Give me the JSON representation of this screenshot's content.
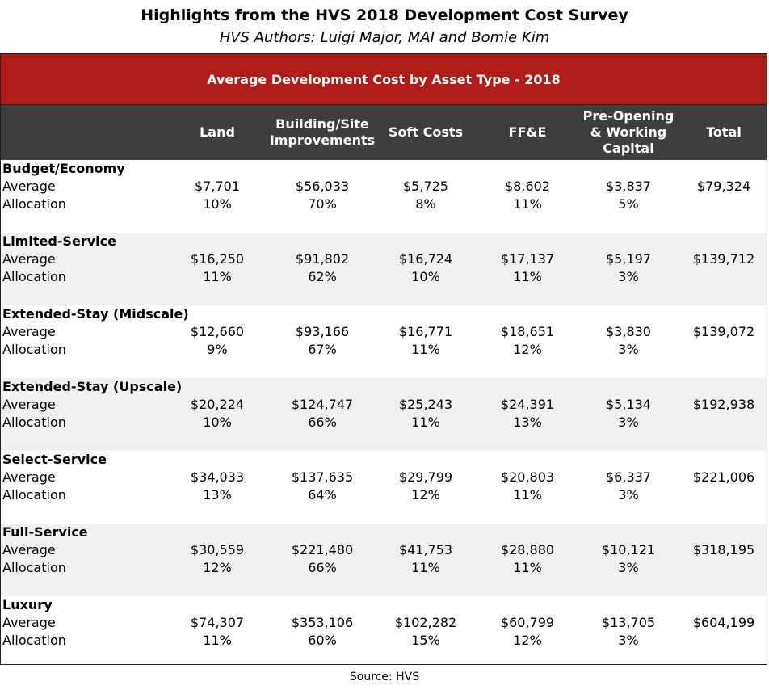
{
  "title": "Highlights from the  HVS 2018 Development Cost Survey",
  "subtitle": "HVS Authors: Luigi Major, MAI and Bomie Kim",
  "table_title": "Average Development Cost by Asset Type - 2018",
  "columns": [
    "Land",
    "Building/Site Improvements",
    "Soft Costs",
    "FF&E",
    "Pre-Opening & Working Capital",
    "Total"
  ],
  "row_labels": {
    "average": "Average",
    "allocation": "Allocation"
  },
  "groups": [
    {
      "name": "Budget/Economy",
      "average": [
        "$7,701",
        "$56,033",
        "$5,725",
        "$8,602",
        "$3,837",
        "$79,324"
      ],
      "allocation": [
        "10%",
        "70%",
        "8%",
        "11%",
        "5%"
      ]
    },
    {
      "name": "Limited-Service",
      "average": [
        "$16,250",
        "$91,802",
        "$16,724",
        "$17,137",
        "$5,197",
        "$139,712"
      ],
      "allocation": [
        "11%",
        "62%",
        "10%",
        "11%",
        "3%"
      ]
    },
    {
      "name": "Extended-Stay (Midscale)",
      "average": [
        "$12,660",
        "$93,166",
        "$16,771",
        "$18,651",
        "$3,830",
        "$139,072"
      ],
      "allocation": [
        "9%",
        "67%",
        "11%",
        "12%",
        "3%"
      ]
    },
    {
      "name": "Extended-Stay (Upscale)",
      "average": [
        "$20,224",
        "$124,747",
        "$25,243",
        "$24,391",
        "$5,134",
        "$192,938"
      ],
      "allocation": [
        "10%",
        "66%",
        "11%",
        "13%",
        "3%"
      ]
    },
    {
      "name": "Select-Service",
      "average": [
        "$34,033",
        "$137,635",
        "$29,799",
        "$20,803",
        "$6,337",
        "$221,006"
      ],
      "allocation": [
        "13%",
        "64%",
        "12%",
        "11%",
        "3%"
      ]
    },
    {
      "name": "Full-Service",
      "average": [
        "$30,559",
        "$221,480",
        "$41,753",
        "$28,880",
        "$10,121",
        "$318,195"
      ],
      "allocation": [
        "12%",
        "66%",
        "11%",
        "11%",
        "3%"
      ]
    },
    {
      "name": "Luxury",
      "average": [
        "$74,307",
        "$353,106",
        "$102,282",
        "$60,799",
        "$13,705",
        "$604,199"
      ],
      "allocation": [
        "11%",
        "60%",
        "15%",
        "12%",
        "3%"
      ]
    }
  ],
  "source": "Source: HVS",
  "colors": {
    "banner": "#b01c17",
    "header": "#3e3e3e",
    "shade": "#f1f1f1"
  }
}
